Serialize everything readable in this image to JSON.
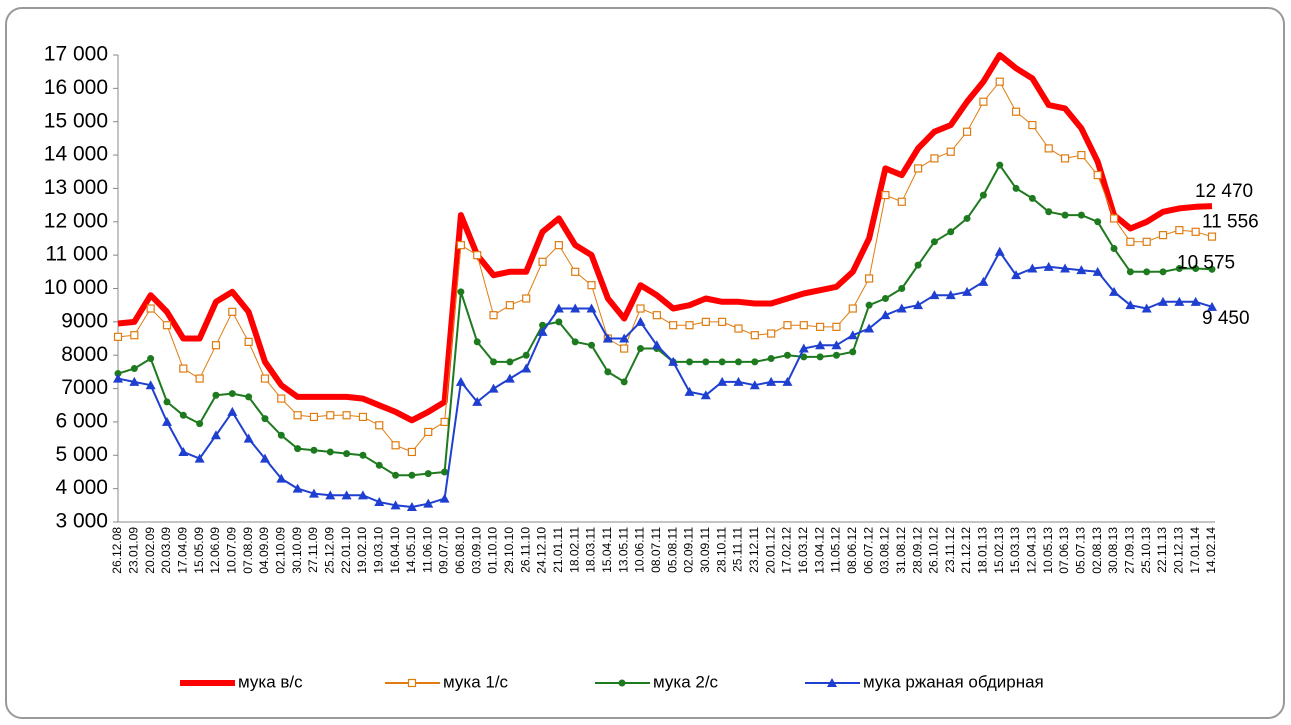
{
  "chart_data": {
    "type": "line",
    "categories": [
      "26.12.08",
      "23.01.09",
      "20.02.09",
      "20.03.09",
      "17.04.09",
      "15.05.09",
      "12.06.09",
      "10.07.09",
      "07.08.09",
      "04.09.09",
      "02.10.09",
      "30.10.09",
      "27.11.09",
      "25.12.09",
      "22.01.10",
      "19.02.10",
      "19.03.10",
      "16.04.10",
      "14.05.10",
      "11.06.10",
      "09.07.10",
      "06.08.10",
      "03.09.10",
      "01.10.10",
      "29.10.10",
      "26.11.10",
      "24.12.10",
      "21.01.11",
      "18.02.11",
      "18.03.11",
      "15.04.11",
      "13.05.11",
      "10.06.11",
      "08.07.11",
      "05.08.11",
      "02.09.11",
      "30.09.11",
      "28.10.11",
      "25.11.11",
      "23.12.11",
      "20.01.12",
      "17.02.12",
      "16.03.12",
      "13.04.12",
      "11.05.12",
      "08.06.12",
      "06.07.12",
      "03.08.12",
      "31.08.12",
      "28.09.12",
      "26.10.12",
      "23.11.12",
      "21.12.12",
      "18.01.13",
      "15.02.13",
      "15.03.13",
      "12.04.13",
      "10.05.13",
      "07.06.13",
      "05.07.13",
      "02.08.13",
      "30.08.13",
      "27.09.13",
      "25.10.13",
      "22.11.13",
      "20.12.13",
      "17.01.14",
      "14.02.14"
    ],
    "series": [
      {
        "name": "мука в/с",
        "color": "#ff0000",
        "marker": "none",
        "values": [
          8950,
          9000,
          9800,
          9300,
          8500,
          8500,
          9600,
          9900,
          9300,
          7800,
          7100,
          6750,
          6750,
          6750,
          6750,
          6700,
          6500,
          6300,
          6050,
          6300,
          6600,
          12200,
          11000,
          10400,
          10500,
          10500,
          11700,
          12100,
          11300,
          11000,
          9700,
          9100,
          10100,
          9800,
          9400,
          9500,
          9700,
          9600,
          9600,
          9550,
          9550,
          9700,
          9850,
          9950,
          10050,
          10500,
          11500,
          13600,
          13400,
          14200,
          14700,
          14900,
          15600,
          16200,
          17000,
          16600,
          16300,
          15500,
          15400,
          14800,
          13800,
          12200,
          11800,
          12000,
          12300,
          12400,
          12450,
          12470
        ],
        "value_labels": [
          null,
          null,
          null,
          null,
          null,
          null,
          null,
          null,
          null,
          null,
          null,
          null,
          null,
          null,
          null,
          null,
          null,
          null,
          null,
          null,
          null,
          null,
          null,
          null,
          null,
          null,
          null,
          null,
          null,
          null,
          null,
          null,
          null,
          null,
          null,
          null,
          null,
          null,
          null,
          null,
          null,
          null,
          null,
          null,
          null,
          null,
          null,
          null,
          null,
          null,
          null,
          null,
          null,
          null,
          null,
          null,
          null,
          null,
          null,
          null,
          null,
          null,
          null,
          null,
          null,
          null,
          null,
          "12 470"
        ]
      },
      {
        "name": "мука 1/с",
        "color": "#e07b10",
        "marker": "square",
        "values": [
          8550,
          8600,
          9400,
          8900,
          7600,
          7300,
          8300,
          9300,
          8400,
          7300,
          6700,
          6200,
          6150,
          6200,
          6200,
          6150,
          5900,
          5300,
          5100,
          5700,
          6000,
          11300,
          11000,
          9200,
          9500,
          9700,
          10800,
          11300,
          10500,
          10100,
          8500,
          8200,
          9400,
          9200,
          8900,
          8900,
          9000,
          9000,
          8800,
          8600,
          8650,
          8900,
          8900,
          8850,
          8850,
          9400,
          10300,
          12800,
          12600,
          13600,
          13900,
          14100,
          14700,
          15600,
          16200,
          15300,
          14900,
          14200,
          13900,
          14000,
          13400,
          12100,
          11400,
          11400,
          11600,
          11750,
          11700,
          11556
        ],
        "value_labels": [
          null,
          null,
          null,
          null,
          null,
          null,
          null,
          null,
          null,
          null,
          null,
          null,
          null,
          null,
          null,
          null,
          null,
          null,
          null,
          null,
          null,
          null,
          null,
          null,
          null,
          null,
          null,
          null,
          null,
          null,
          null,
          null,
          null,
          null,
          null,
          null,
          null,
          null,
          null,
          null,
          null,
          null,
          null,
          null,
          null,
          null,
          null,
          null,
          null,
          null,
          null,
          null,
          null,
          null,
          null,
          null,
          null,
          null,
          null,
          null,
          null,
          null,
          null,
          null,
          null,
          null,
          null,
          "11 556"
        ]
      },
      {
        "name": "мука 2/с",
        "color": "#1e7a1e",
        "marker": "circle",
        "values": [
          7450,
          7600,
          7900,
          6600,
          6200,
          5950,
          6800,
          6850,
          6750,
          6100,
          5600,
          5200,
          5150,
          5100,
          5050,
          5000,
          4700,
          4400,
          4400,
          4450,
          4500,
          9900,
          8400,
          7800,
          7800,
          8000,
          8900,
          9000,
          8400,
          8300,
          7500,
          7200,
          8200,
          8200,
          7800,
          7800,
          7800,
          7800,
          7800,
          7800,
          7900,
          8000,
          7950,
          7950,
          8000,
          8100,
          9500,
          9700,
          10000,
          10700,
          11400,
          11700,
          12100,
          12800,
          13700,
          13000,
          12700,
          12300,
          12200,
          12200,
          12000,
          11200,
          10500,
          10500,
          10500,
          10600,
          10600,
          10575
        ],
        "value_labels": [
          null,
          null,
          null,
          null,
          null,
          null,
          null,
          null,
          null,
          null,
          null,
          null,
          null,
          null,
          null,
          null,
          null,
          null,
          null,
          null,
          null,
          null,
          null,
          null,
          null,
          null,
          null,
          null,
          null,
          null,
          null,
          null,
          null,
          null,
          null,
          null,
          null,
          null,
          null,
          null,
          null,
          null,
          null,
          null,
          null,
          null,
          null,
          null,
          null,
          null,
          null,
          null,
          null,
          null,
          null,
          null,
          null,
          null,
          null,
          null,
          null,
          null,
          null,
          null,
          null,
          null,
          null,
          "10 575"
        ]
      },
      {
        "name": "мука ржаная обдирная",
        "color": "#1f3fd0",
        "marker": "triangle",
        "values": [
          7300,
          7200,
          7100,
          6000,
          5100,
          4900,
          5600,
          6300,
          5500,
          4900,
          4300,
          4000,
          3850,
          3800,
          3800,
          3800,
          3600,
          3500,
          3450,
          3550,
          3700,
          7200,
          6600,
          7000,
          7300,
          7600,
          8700,
          9400,
          9400,
          9400,
          8500,
          8500,
          9000,
          8300,
          7800,
          6900,
          6800,
          7200,
          7200,
          7100,
          7200,
          7200,
          8200,
          8300,
          8300,
          8600,
          8800,
          9200,
          9400,
          9500,
          9800,
          9800,
          9900,
          10200,
          11100,
          10400,
          10600,
          10650,
          10600,
          10550,
          10500,
          9900,
          9500,
          9400,
          9600,
          9600,
          9600,
          9450
        ],
        "value_labels": [
          null,
          null,
          null,
          null,
          null,
          null,
          null,
          null,
          null,
          null,
          null,
          null,
          null,
          null,
          null,
          null,
          null,
          null,
          null,
          null,
          null,
          null,
          null,
          null,
          null,
          null,
          null,
          null,
          null,
          null,
          null,
          null,
          null,
          null,
          null,
          null,
          null,
          null,
          null,
          null,
          null,
          null,
          null,
          null,
          null,
          null,
          null,
          null,
          null,
          null,
          null,
          null,
          null,
          null,
          null,
          null,
          null,
          null,
          null,
          null,
          null,
          null,
          null,
          null,
          null,
          null,
          null,
          "9 450"
        ]
      }
    ],
    "ylim": [
      3000,
      17000
    ],
    "yticks": [
      {
        "value": 3000,
        "label": "3 000"
      },
      {
        "value": 4000,
        "label": "4 000"
      },
      {
        "value": 5000,
        "label": "5 000"
      },
      {
        "value": 6000,
        "label": "6 000"
      },
      7000,
      8000,
      9000,
      {
        "value": 10000,
        "label": "10 000"
      },
      {
        "value": 11000,
        "label": "11 000"
      },
      {
        "value": 12000,
        "label": "12 000"
      },
      {
        "value": 13000,
        "label": "13 000"
      },
      {
        "value": 14000,
        "label": "14 000"
      },
      {
        "value": 15000,
        "label": "15 000"
      },
      {
        "value": 16000,
        "label": "16 000"
      },
      {
        "value": 17000,
        "label": "17 000"
      }
    ],
    "grid": false,
    "legend": "bottom"
  }
}
